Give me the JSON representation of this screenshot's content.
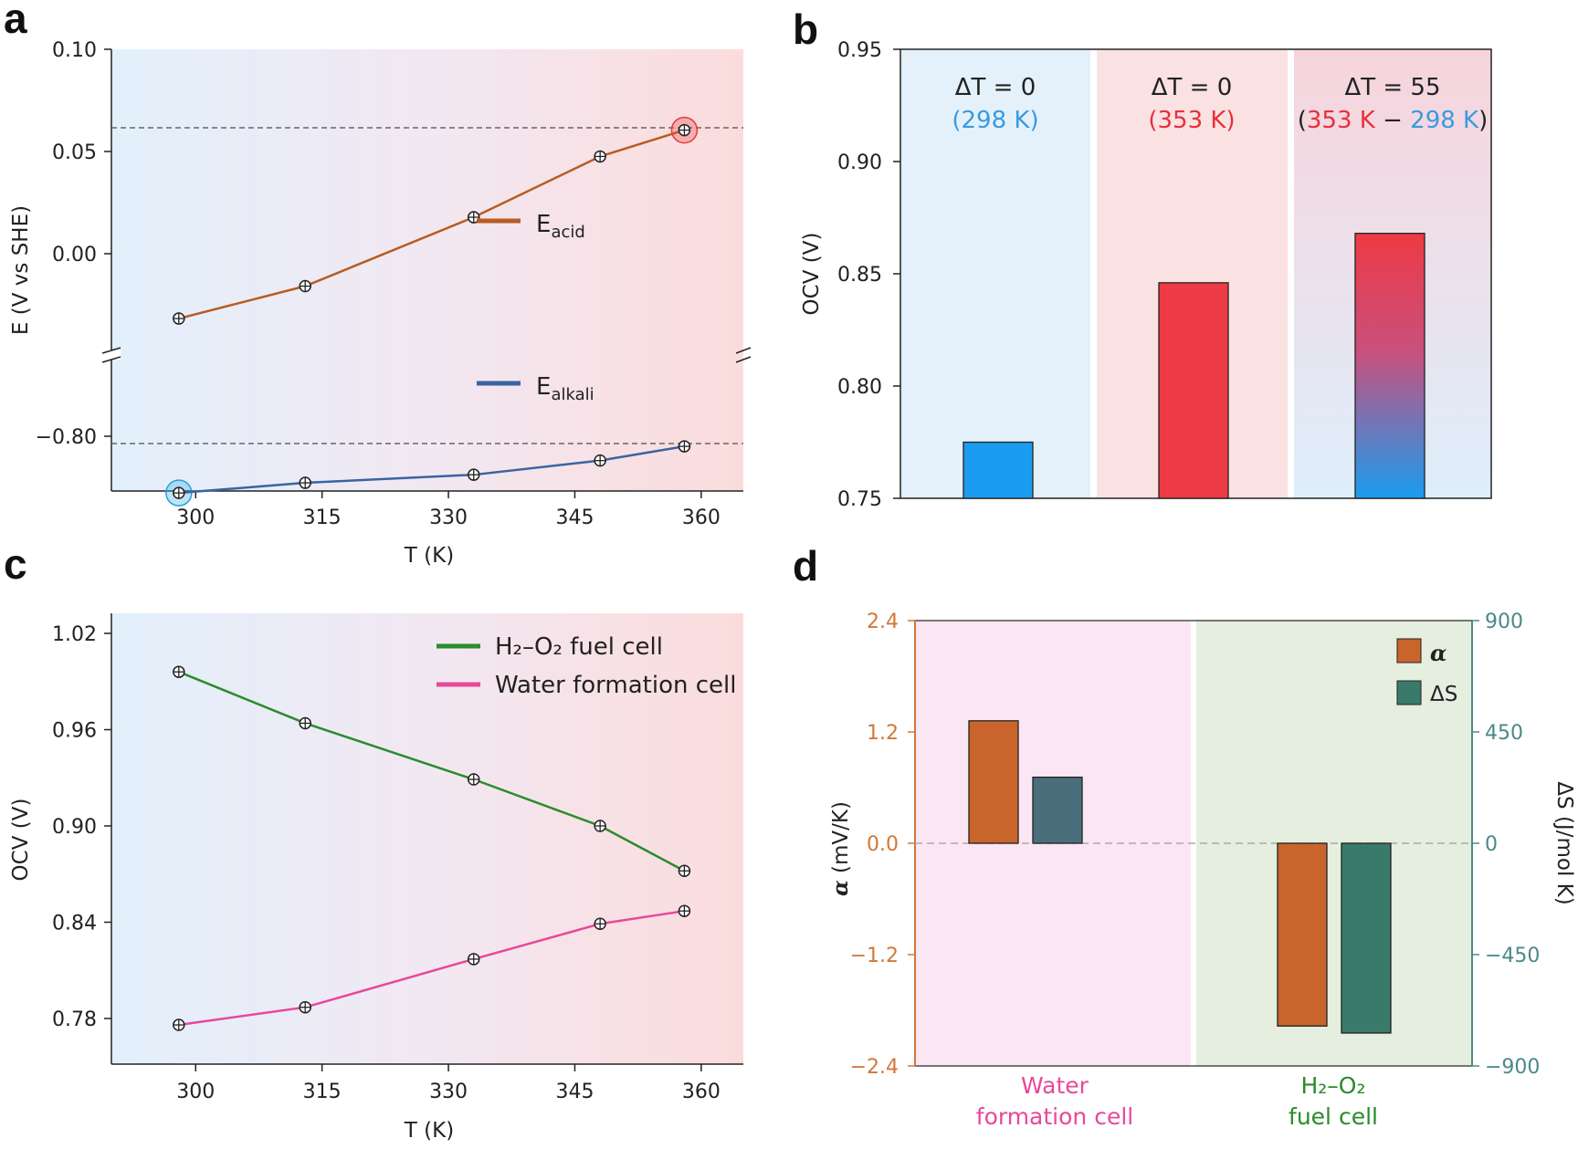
{
  "colors": {
    "acid": "#b85c22",
    "alkali": "#3a64a0",
    "fuel_cell": "#2a8c2a",
    "water_cell": "#e8489a",
    "blue_text": "#3a9ae0",
    "red_text": "#e8303a",
    "alpha_axis": "#d0783a",
    "ds_axis": "#4a8a88",
    "bar_blue": "#1a9cf0",
    "bar_red": "#ee3a44",
    "bar_alpha": "#c8642c",
    "bar_ds": "#3a7a6a"
  },
  "chart_data": [
    {
      "panel": "a",
      "type": "line",
      "xlabel": "T (K)",
      "ylabel": "E (V vs SHE)",
      "xlim": [
        290,
        365
      ],
      "xticks": [
        "300",
        "315",
        "330",
        "345",
        "360"
      ],
      "yticks": [
        "0.10",
        "0.05",
        "0.00",
        "−0.80"
      ],
      "series": [
        {
          "name": "E",
          "sub": "acid",
          "x": [
            298,
            313,
            333,
            348,
            358
          ],
          "y": [
            -0.032,
            -0.016,
            0.018,
            0.048,
            0.061
          ]
        },
        {
          "name": "E",
          "sub": "alkali",
          "x": [
            298,
            313,
            333,
            348,
            358
          ],
          "y": [
            -0.828,
            -0.823,
            -0.819,
            -0.812,
            -0.805
          ]
        }
      ]
    },
    {
      "panel": "b",
      "type": "bar",
      "ylabel": "OCV (V)",
      "ylim": [
        0.75,
        0.95
      ],
      "yticks": [
        "0.75",
        "0.80",
        "0.85",
        "0.90",
        "0.95"
      ],
      "categories": [
        {
          "title": "ΔT = 0",
          "sub": "(298 K)"
        },
        {
          "title": "ΔT = 0",
          "sub": "(353 K)"
        },
        {
          "title": "ΔT = 55",
          "sub_parts": [
            "(",
            "353 K",
            " − ",
            "298 K",
            ")"
          ]
        }
      ],
      "values": [
        0.775,
        0.846,
        0.868
      ]
    },
    {
      "panel": "c",
      "type": "line",
      "xlabel": "T (K)",
      "ylabel": "OCV (V)",
      "ylim": [
        0.77,
        1.025
      ],
      "xticks": [
        "300",
        "315",
        "330",
        "345",
        "360"
      ],
      "yticks": [
        "1.02",
        "0.96",
        "0.90",
        "0.84",
        "0.78"
      ],
      "legend": [
        "H₂–O₂ fuel cell",
        "Water formation cell"
      ],
      "series": [
        {
          "name": "H₂–O₂ fuel cell",
          "x": [
            298,
            313,
            333,
            348,
            358
          ],
          "y": [
            0.996,
            0.964,
            0.929,
            0.9,
            0.872
          ]
        },
        {
          "name": "Water formation cell",
          "x": [
            298,
            313,
            333,
            348,
            358
          ],
          "y": [
            0.776,
            0.787,
            0.817,
            0.839,
            0.847
          ]
        }
      ]
    },
    {
      "panel": "d",
      "type": "bar",
      "ylabel_left_symbol": "α",
      "ylabel_left": " (mV/K)",
      "ylabel_right": "ΔS (J/mol K)",
      "ylim_left": [
        -2.4,
        2.4
      ],
      "ylim_right": [
        -900,
        900
      ],
      "yticks_left": [
        "2.4",
        "1.2",
        "0.0",
        "−1.2",
        "−2.4"
      ],
      "yticks_right": [
        "900",
        "450",
        "0",
        "−450",
        "−900"
      ],
      "categories": [
        {
          "line1": "Water",
          "line2": "formation cell"
        },
        {
          "line1": "H₂–O₂",
          "line2": "fuel cell"
        }
      ],
      "legend": [
        "α",
        "ΔS"
      ],
      "alpha_values": [
        1.32,
        -1.97
      ],
      "ds_values": [
        267,
        -767
      ]
    }
  ],
  "labels": {
    "a": "a",
    "b": "b",
    "c": "c",
    "d": "d"
  }
}
